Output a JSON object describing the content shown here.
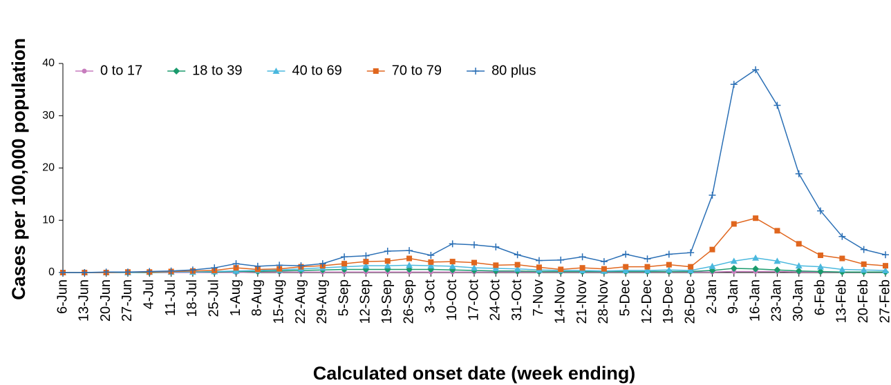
{
  "chart_data": {
    "type": "line",
    "y_label": "Cases per 100,000 population",
    "x_label": "Calculated onset date (week ending)",
    "categories": [
      "6-Jun",
      "13-Jun",
      "20-Jun",
      "27-Jun",
      "4-Jul",
      "11-Jul",
      "18-Jul",
      "25-Jul",
      "1-Aug",
      "8-Aug",
      "15-Aug",
      "22-Aug",
      "29-Aug",
      "5-Sep",
      "12-Sep",
      "19-Sep",
      "26-Sep",
      "3-Oct",
      "10-Oct",
      "17-Oct",
      "24-Oct",
      "31-Oct",
      "7-Nov",
      "14-Nov",
      "21-Nov",
      "28-Nov",
      "5-Dec",
      "12-Dec",
      "19-Dec",
      "26-Dec",
      "2-Jan",
      "9-Jan",
      "16-Jan",
      "23-Jan",
      "30-Jan",
      "6-Feb",
      "13-Feb",
      "20-Feb",
      "27-Feb"
    ],
    "series": [
      {
        "name": "0 to 17",
        "color": "#c77cbd",
        "marker": "circle",
        "values": [
          0,
          0,
          0,
          0,
          0,
          0,
          0,
          0,
          0,
          0.1,
          0.1,
          0.1,
          0.1,
          0.1,
          0.1,
          0.1,
          0.1,
          0.1,
          0.1,
          0.1,
          0.1,
          0.1,
          0.1,
          0.1,
          0.1,
          0.1,
          0.1,
          0.1,
          0.1,
          0.1,
          0.1,
          0.2,
          0.2,
          0.2,
          0.1,
          0.1,
          0.1,
          0.1,
          0.1
        ]
      },
      {
        "name": "18 to 39",
        "color": "#1a9a6c",
        "marker": "diamond",
        "values": [
          0,
          0,
          0,
          0,
          0,
          0.1,
          0.1,
          0.1,
          0.2,
          0.2,
          0.3,
          0.4,
          0.5,
          0.6,
          0.6,
          0.6,
          0.6,
          0.6,
          0.5,
          0.4,
          0.3,
          0.3,
          0.2,
          0.2,
          0.2,
          0.2,
          0.2,
          0.2,
          0.2,
          0.2,
          0.4,
          0.8,
          0.7,
          0.5,
          0.3,
          0.2,
          0.1,
          0.1,
          0.1
        ]
      },
      {
        "name": "40 to 69",
        "color": "#4ab8de",
        "marker": "triangle",
        "values": [
          0,
          0,
          0,
          0,
          0.1,
          0.1,
          0.1,
          0.2,
          0.3,
          0.4,
          0.5,
          0.7,
          0.9,
          1.1,
          1.3,
          1.3,
          1.4,
          1.3,
          1.2,
          0.9,
          0.8,
          0.7,
          0.5,
          0.4,
          0.4,
          0.3,
          0.4,
          0.4,
          0.5,
          0.4,
          1.2,
          2.2,
          2.8,
          2.2,
          1.3,
          1.1,
          0.6,
          0.5,
          0.4
        ]
      },
      {
        "name": "70 to 79",
        "color": "#e0661e",
        "marker": "square",
        "values": [
          0,
          0,
          0,
          0.1,
          0.1,
          0.2,
          0.3,
          0.4,
          0.9,
          0.6,
          0.7,
          1.1,
          1.3,
          1.7,
          2.1,
          2.2,
          2.7,
          2.0,
          2.1,
          1.9,
          1.4,
          1.5,
          1.0,
          0.6,
          0.9,
          0.7,
          1.1,
          1.1,
          1.5,
          1.1,
          4.4,
          9.3,
          10.4,
          8.0,
          5.5,
          3.3,
          2.7,
          1.6,
          1.3
        ]
      },
      {
        "name": "80 plus",
        "color": "#2a6fb5",
        "marker": "plus",
        "values": [
          0,
          0,
          0.1,
          0.1,
          0.2,
          0.3,
          0.5,
          0.9,
          1.7,
          1.2,
          1.4,
          1.3,
          1.7,
          3.0,
          3.2,
          4.1,
          4.2,
          3.3,
          5.5,
          5.3,
          4.9,
          3.4,
          2.3,
          2.4,
          3.0,
          2.1,
          3.5,
          2.6,
          3.5,
          3.8,
          14.8,
          36.0,
          38.8,
          32.0,
          18.9,
          11.8,
          6.9,
          4.4,
          3.4
        ]
      }
    ],
    "ylim": [
      0,
      40
    ],
    "yticks": [
      0,
      10,
      20,
      30,
      40
    ],
    "grid": false,
    "legend": "top-left"
  }
}
